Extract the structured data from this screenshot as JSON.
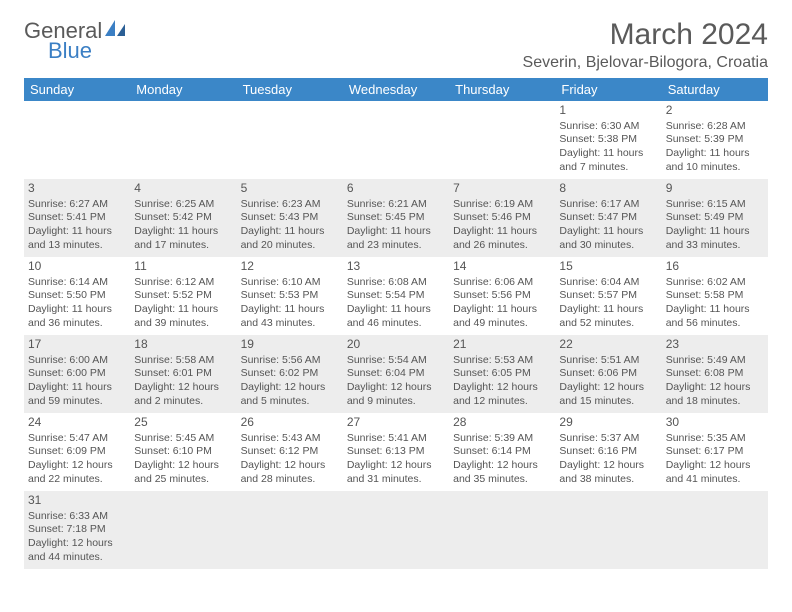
{
  "logo": {
    "text1": "General",
    "text2": "Blue"
  },
  "title": "March 2024",
  "location": "Severin, Bjelovar-Bilogora, Croatia",
  "day_headers": [
    "Sunday",
    "Monday",
    "Tuesday",
    "Wednesday",
    "Thursday",
    "Friday",
    "Saturday"
  ],
  "header_bg": "#3b87c8",
  "header_fg": "#ffffff",
  "shaded_bg": "#ededed",
  "weeks": [
    {
      "shaded": false,
      "cells": [
        null,
        null,
        null,
        null,
        null,
        {
          "day": "1",
          "sunrise": "Sunrise: 6:30 AM",
          "sunset": "Sunset: 5:38 PM",
          "daylight1": "Daylight: 11 hours",
          "daylight2": "and 7 minutes."
        },
        {
          "day": "2",
          "sunrise": "Sunrise: 6:28 AM",
          "sunset": "Sunset: 5:39 PM",
          "daylight1": "Daylight: 11 hours",
          "daylight2": "and 10 minutes."
        }
      ]
    },
    {
      "shaded": true,
      "cells": [
        {
          "day": "3",
          "sunrise": "Sunrise: 6:27 AM",
          "sunset": "Sunset: 5:41 PM",
          "daylight1": "Daylight: 11 hours",
          "daylight2": "and 13 minutes."
        },
        {
          "day": "4",
          "sunrise": "Sunrise: 6:25 AM",
          "sunset": "Sunset: 5:42 PM",
          "daylight1": "Daylight: 11 hours",
          "daylight2": "and 17 minutes."
        },
        {
          "day": "5",
          "sunrise": "Sunrise: 6:23 AM",
          "sunset": "Sunset: 5:43 PM",
          "daylight1": "Daylight: 11 hours",
          "daylight2": "and 20 minutes."
        },
        {
          "day": "6",
          "sunrise": "Sunrise: 6:21 AM",
          "sunset": "Sunset: 5:45 PM",
          "daylight1": "Daylight: 11 hours",
          "daylight2": "and 23 minutes."
        },
        {
          "day": "7",
          "sunrise": "Sunrise: 6:19 AM",
          "sunset": "Sunset: 5:46 PM",
          "daylight1": "Daylight: 11 hours",
          "daylight2": "and 26 minutes."
        },
        {
          "day": "8",
          "sunrise": "Sunrise: 6:17 AM",
          "sunset": "Sunset: 5:47 PM",
          "daylight1": "Daylight: 11 hours",
          "daylight2": "and 30 minutes."
        },
        {
          "day": "9",
          "sunrise": "Sunrise: 6:15 AM",
          "sunset": "Sunset: 5:49 PM",
          "daylight1": "Daylight: 11 hours",
          "daylight2": "and 33 minutes."
        }
      ]
    },
    {
      "shaded": false,
      "cells": [
        {
          "day": "10",
          "sunrise": "Sunrise: 6:14 AM",
          "sunset": "Sunset: 5:50 PM",
          "daylight1": "Daylight: 11 hours",
          "daylight2": "and 36 minutes."
        },
        {
          "day": "11",
          "sunrise": "Sunrise: 6:12 AM",
          "sunset": "Sunset: 5:52 PM",
          "daylight1": "Daylight: 11 hours",
          "daylight2": "and 39 minutes."
        },
        {
          "day": "12",
          "sunrise": "Sunrise: 6:10 AM",
          "sunset": "Sunset: 5:53 PM",
          "daylight1": "Daylight: 11 hours",
          "daylight2": "and 43 minutes."
        },
        {
          "day": "13",
          "sunrise": "Sunrise: 6:08 AM",
          "sunset": "Sunset: 5:54 PM",
          "daylight1": "Daylight: 11 hours",
          "daylight2": "and 46 minutes."
        },
        {
          "day": "14",
          "sunrise": "Sunrise: 6:06 AM",
          "sunset": "Sunset: 5:56 PM",
          "daylight1": "Daylight: 11 hours",
          "daylight2": "and 49 minutes."
        },
        {
          "day": "15",
          "sunrise": "Sunrise: 6:04 AM",
          "sunset": "Sunset: 5:57 PM",
          "daylight1": "Daylight: 11 hours",
          "daylight2": "and 52 minutes."
        },
        {
          "day": "16",
          "sunrise": "Sunrise: 6:02 AM",
          "sunset": "Sunset: 5:58 PM",
          "daylight1": "Daylight: 11 hours",
          "daylight2": "and 56 minutes."
        }
      ]
    },
    {
      "shaded": true,
      "cells": [
        {
          "day": "17",
          "sunrise": "Sunrise: 6:00 AM",
          "sunset": "Sunset: 6:00 PM",
          "daylight1": "Daylight: 11 hours",
          "daylight2": "and 59 minutes."
        },
        {
          "day": "18",
          "sunrise": "Sunrise: 5:58 AM",
          "sunset": "Sunset: 6:01 PM",
          "daylight1": "Daylight: 12 hours",
          "daylight2": "and 2 minutes."
        },
        {
          "day": "19",
          "sunrise": "Sunrise: 5:56 AM",
          "sunset": "Sunset: 6:02 PM",
          "daylight1": "Daylight: 12 hours",
          "daylight2": "and 5 minutes."
        },
        {
          "day": "20",
          "sunrise": "Sunrise: 5:54 AM",
          "sunset": "Sunset: 6:04 PM",
          "daylight1": "Daylight: 12 hours",
          "daylight2": "and 9 minutes."
        },
        {
          "day": "21",
          "sunrise": "Sunrise: 5:53 AM",
          "sunset": "Sunset: 6:05 PM",
          "daylight1": "Daylight: 12 hours",
          "daylight2": "and 12 minutes."
        },
        {
          "day": "22",
          "sunrise": "Sunrise: 5:51 AM",
          "sunset": "Sunset: 6:06 PM",
          "daylight1": "Daylight: 12 hours",
          "daylight2": "and 15 minutes."
        },
        {
          "day": "23",
          "sunrise": "Sunrise: 5:49 AM",
          "sunset": "Sunset: 6:08 PM",
          "daylight1": "Daylight: 12 hours",
          "daylight2": "and 18 minutes."
        }
      ]
    },
    {
      "shaded": false,
      "cells": [
        {
          "day": "24",
          "sunrise": "Sunrise: 5:47 AM",
          "sunset": "Sunset: 6:09 PM",
          "daylight1": "Daylight: 12 hours",
          "daylight2": "and 22 minutes."
        },
        {
          "day": "25",
          "sunrise": "Sunrise: 5:45 AM",
          "sunset": "Sunset: 6:10 PM",
          "daylight1": "Daylight: 12 hours",
          "daylight2": "and 25 minutes."
        },
        {
          "day": "26",
          "sunrise": "Sunrise: 5:43 AM",
          "sunset": "Sunset: 6:12 PM",
          "daylight1": "Daylight: 12 hours",
          "daylight2": "and 28 minutes."
        },
        {
          "day": "27",
          "sunrise": "Sunrise: 5:41 AM",
          "sunset": "Sunset: 6:13 PM",
          "daylight1": "Daylight: 12 hours",
          "daylight2": "and 31 minutes."
        },
        {
          "day": "28",
          "sunrise": "Sunrise: 5:39 AM",
          "sunset": "Sunset: 6:14 PM",
          "daylight1": "Daylight: 12 hours",
          "daylight2": "and 35 minutes."
        },
        {
          "day": "29",
          "sunrise": "Sunrise: 5:37 AM",
          "sunset": "Sunset: 6:16 PM",
          "daylight1": "Daylight: 12 hours",
          "daylight2": "and 38 minutes."
        },
        {
          "day": "30",
          "sunrise": "Sunrise: 5:35 AM",
          "sunset": "Sunset: 6:17 PM",
          "daylight1": "Daylight: 12 hours",
          "daylight2": "and 41 minutes."
        }
      ]
    },
    {
      "shaded": true,
      "cells": [
        {
          "day": "31",
          "sunrise": "Sunrise: 6:33 AM",
          "sunset": "Sunset: 7:18 PM",
          "daylight1": "Daylight: 12 hours",
          "daylight2": "and 44 minutes."
        },
        null,
        null,
        null,
        null,
        null,
        null
      ]
    }
  ]
}
